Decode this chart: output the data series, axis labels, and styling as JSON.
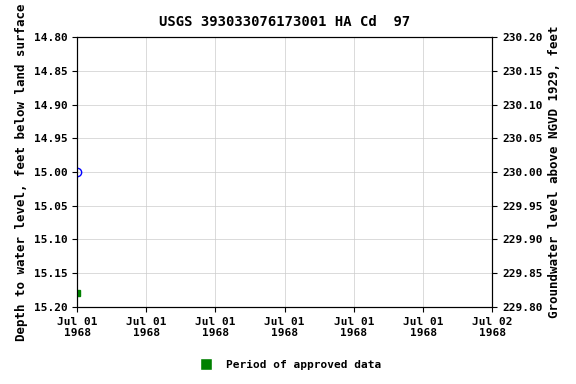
{
  "title": "USGS 393033076173001 HA Cd  97",
  "ylabel_left": "Depth to water level, feet below land surface",
  "ylabel_right": "Groundwater level above NGVD 1929, feet",
  "ylim_left": [
    15.2,
    14.8
  ],
  "ylim_right": [
    229.8,
    230.2
  ],
  "yticks_left": [
    14.8,
    14.85,
    14.9,
    14.95,
    15.0,
    15.05,
    15.1,
    15.15,
    15.2
  ],
  "yticks_right": [
    229.8,
    229.85,
    229.9,
    229.95,
    230.0,
    230.05,
    230.1,
    230.15,
    230.2
  ],
  "data_point_date": "1968-07-01",
  "data_point_value": 15.0,
  "data_point_marker": "o",
  "data_point_color": "#0000ff",
  "data_point_fillstyle": "none",
  "approved_point_date": "1968-07-01",
  "approved_point_value": 15.18,
  "approved_point_color": "#008000",
  "approved_point_marker": "s",
  "approved_point_size": 4,
  "legend_label": "Period of approved data",
  "legend_color": "#008000",
  "x_start": "1968-07-01",
  "x_end": "1968-07-02",
  "background_color": "#ffffff",
  "grid_color": "#cccccc",
  "title_fontsize": 10,
  "axis_label_fontsize": 9,
  "tick_fontsize": 8,
  "font_family": "monospace"
}
